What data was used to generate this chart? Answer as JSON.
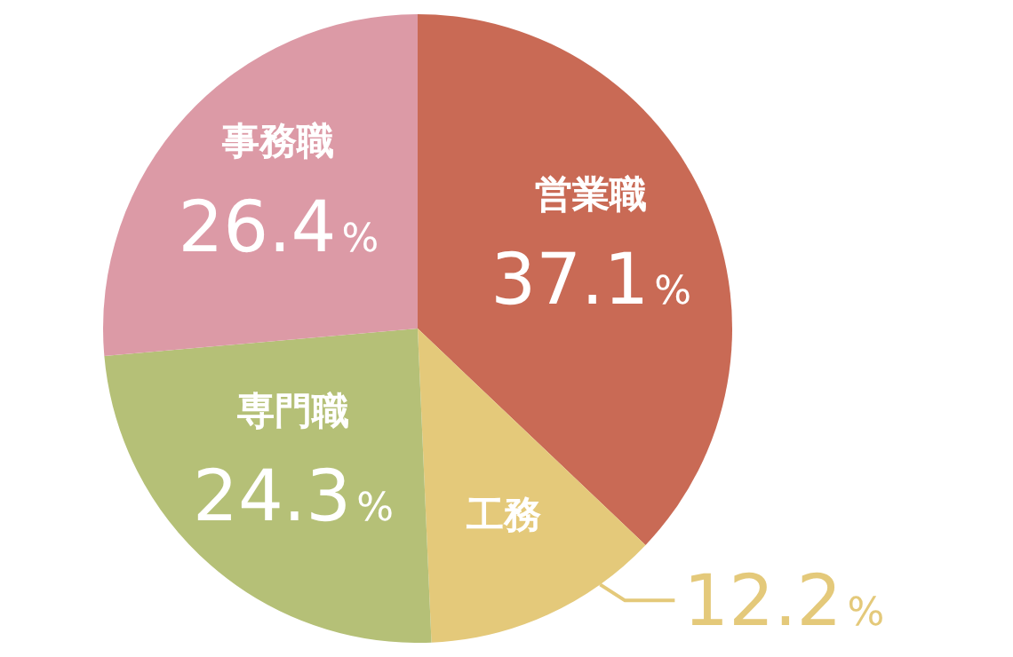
{
  "chart_data": {
    "type": "pie",
    "categories": [
      "営業職",
      "工務",
      "専門職",
      "事務職"
    ],
    "values": [
      37.1,
      12.2,
      24.3,
      26.4
    ],
    "value_labels": [
      "37.1%",
      "12.2%",
      "24.3%",
      "26.4%"
    ],
    "colors": [
      "#c96a55",
      "#e4c97a",
      "#b5c077",
      "#dc9aa6"
    ],
    "legend": false
  }
}
